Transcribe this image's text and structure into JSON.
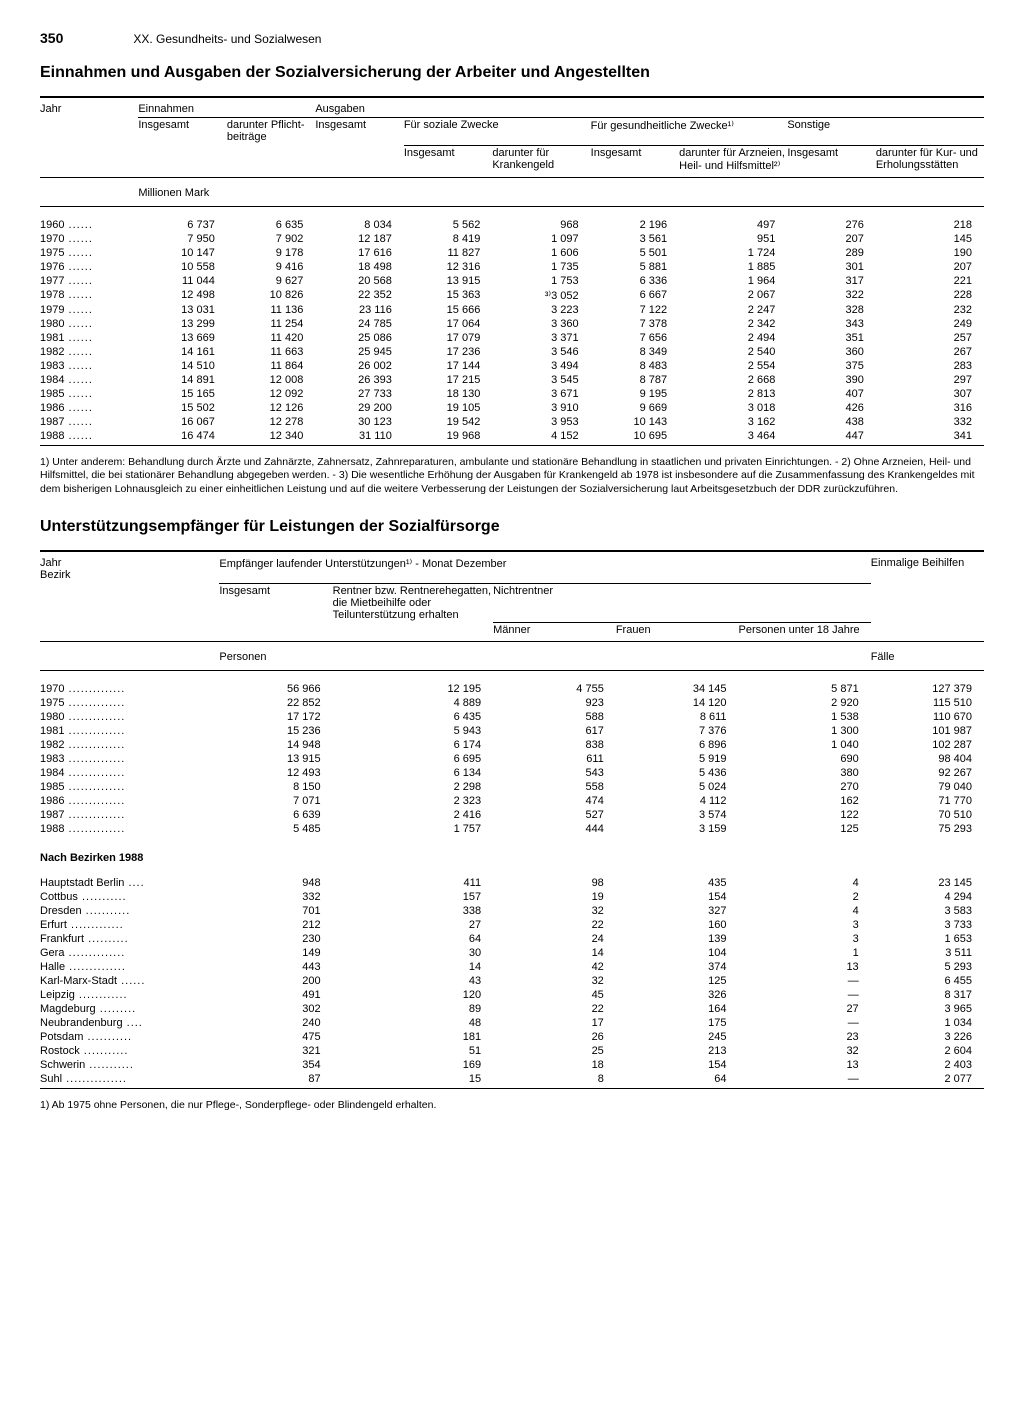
{
  "page_number": "350",
  "chapter_title": "XX. Gesundheits- und Sozialwesen",
  "table1": {
    "title": "Einnahmen und Ausgaben der Sozialversicherung der Arbeiter und Angestellten",
    "col_labels": {
      "jahr": "Jahr",
      "einnahmen": "Einnahmen",
      "ausgaben": "Ausgaben",
      "insgesamt": "Insgesamt",
      "pflicht": "darunter Pflicht­beiträge",
      "soziale": "Für soziale Zwecke",
      "kranken": "darunter für Krankengeld",
      "gesundheit": "Für gesundheitliche Zwecke¹⁾",
      "arznei": "darunter für Arzneien, Heil- und Hilfsmittel²⁾",
      "sonstige": "Sonstige",
      "kur": "darunter für Kur- und Erholungs­stätten"
    },
    "unit": "Millionen Mark",
    "rows": [
      {
        "y": "1960",
        "c": [
          "6 737",
          "6 635",
          "8 034",
          "5 562",
          "968",
          "2 196",
          "497",
          "276",
          "218"
        ]
      },
      {
        "y": "1970",
        "c": [
          "7 950",
          "7 902",
          "12 187",
          "8 419",
          "1 097",
          "3 561",
          "951",
          "207",
          "145"
        ]
      },
      {
        "y": "1975",
        "c": [
          "10 147",
          "9 178",
          "17 616",
          "11 827",
          "1 606",
          "5 501",
          "1 724",
          "289",
          "190"
        ]
      },
      {
        "y": "1976",
        "c": [
          "10 558",
          "9 416",
          "18 498",
          "12 316",
          "1 735",
          "5 881",
          "1 885",
          "301",
          "207"
        ]
      },
      {
        "y": "1977",
        "c": [
          "11 044",
          "9 627",
          "20 568",
          "13 915",
          "1 753",
          "6 336",
          "1 964",
          "317",
          "221"
        ]
      },
      {
        "y": "1978",
        "c": [
          "12 498",
          "10 826",
          "22 352",
          "15 363",
          "³⁾3 052",
          "6 667",
          "2 067",
          "322",
          "228"
        ]
      },
      {
        "y": "1979",
        "c": [
          "13 031",
          "11 136",
          "23 116",
          "15 666",
          "3 223",
          "7 122",
          "2 247",
          "328",
          "232"
        ]
      },
      {
        "y": "1980",
        "c": [
          "13 299",
          "11 254",
          "24 785",
          "17 064",
          "3 360",
          "7 378",
          "2 342",
          "343",
          "249"
        ]
      },
      {
        "y": "1981",
        "c": [
          "13 669",
          "11 420",
          "25 086",
          "17 079",
          "3 371",
          "7 656",
          "2 494",
          "351",
          "257"
        ]
      },
      {
        "y": "1982",
        "c": [
          "14 161",
          "11 663",
          "25 945",
          "17 236",
          "3 546",
          "8 349",
          "2 540",
          "360",
          "267"
        ]
      },
      {
        "y": "1983",
        "c": [
          "14 510",
          "11 864",
          "26 002",
          "17 144",
          "3 494",
          "8 483",
          "2 554",
          "375",
          "283"
        ]
      },
      {
        "y": "1984",
        "c": [
          "14 891",
          "12 008",
          "26 393",
          "17 215",
          "3 545",
          "8 787",
          "2 668",
          "390",
          "297"
        ]
      },
      {
        "y": "1985",
        "c": [
          "15 165",
          "12 092",
          "27 733",
          "18 130",
          "3 671",
          "9 195",
          "2 813",
          "407",
          "307"
        ]
      },
      {
        "y": "1986",
        "c": [
          "15 502",
          "12 126",
          "29 200",
          "19 105",
          "3 910",
          "9 669",
          "3 018",
          "426",
          "316"
        ]
      },
      {
        "y": "1987",
        "c": [
          "16 067",
          "12 278",
          "30 123",
          "19 542",
          "3 953",
          "10 143",
          "3 162",
          "438",
          "332"
        ]
      },
      {
        "y": "1988",
        "c": [
          "16 474",
          "12 340",
          "31 110",
          "19 968",
          "4 152",
          "10 695",
          "3 464",
          "447",
          "341"
        ]
      }
    ],
    "footnote": "1) Unter anderem: Behandlung durch Ärzte und Zahnärzte, Zahnersatz, Zahnreparaturen, ambulante und stationäre Behandlung in staatlichen und privaten Einrichtungen. - 2) Ohne Arzneien, Heil- und Hilfsmittel, die bei stationärer Behandlung abgegeben werden. - 3) Die wesentliche Erhöhung der Ausgaben für Krankengeld ab 1978 ist insbesondere auf die Zusammenfassung des Krankengeldes mit dem bisherigen Lohnausgleich zu einer einheitlichen Leistung und auf die weitere Verbesserung der Leistungen der Sozialversicherung laut Arbeitsgesetzbuch der DDR zurückzuführen."
  },
  "table2": {
    "title": "Unterstützungsempfänger für Leistungen der Sozialfürsorge",
    "col_labels": {
      "jahr_bezirk": "Jahr\nBezirk",
      "empfaenger": "Empfänger laufender Unterstützungen¹⁾ - Monat Dezember",
      "insgesamt": "Insgesamt",
      "rentner": "Rentner bzw. Rentnerehegatten, die Mietbeihilfe oder Teilunterstützung erhalten",
      "nichtrentner": "Nichtrentner",
      "maenner": "Männer",
      "frauen": "Frauen",
      "u18": "Personen unter 18 Jahre",
      "einmalig": "Einmalige Beihilfen"
    },
    "unit_left": "Personen",
    "unit_right": "Fälle",
    "rows_years": [
      {
        "y": "1970",
        "c": [
          "56 966",
          "12 195",
          "4 755",
          "34 145",
          "5 871",
          "127 379"
        ]
      },
      {
        "y": "1975",
        "c": [
          "22 852",
          "4 889",
          "923",
          "14 120",
          "2 920",
          "115 510"
        ]
      },
      {
        "y": "1980",
        "c": [
          "17 172",
          "6 435",
          "588",
          "8 611",
          "1 538",
          "110 670"
        ]
      },
      {
        "y": "1981",
        "c": [
          "15 236",
          "5 943",
          "617",
          "7 376",
          "1 300",
          "101 987"
        ]
      },
      {
        "y": "1982",
        "c": [
          "14 948",
          "6 174",
          "838",
          "6 896",
          "1 040",
          "102 287"
        ]
      },
      {
        "y": "1983",
        "c": [
          "13 915",
          "6 695",
          "611",
          "5 919",
          "690",
          "98 404"
        ]
      },
      {
        "y": "1984",
        "c": [
          "12 493",
          "6 134",
          "543",
          "5 436",
          "380",
          "92 267"
        ]
      },
      {
        "y": "1985",
        "c": [
          "8 150",
          "2 298",
          "558",
          "5 024",
          "270",
          "79 040"
        ]
      },
      {
        "y": "1986",
        "c": [
          "7 071",
          "2 323",
          "474",
          "4 112",
          "162",
          "71 770"
        ]
      },
      {
        "y": "1987",
        "c": [
          "6 639",
          "2 416",
          "527",
          "3 574",
          "122",
          "70 510"
        ]
      },
      {
        "y": "1988",
        "c": [
          "5 485",
          "1 757",
          "444",
          "3 159",
          "125",
          "75 293"
        ]
      }
    ],
    "bezirk_label": "Nach Bezirken 1988",
    "rows_bezirk": [
      {
        "b": "Hauptstadt Berlin",
        "d": "....",
        "c": [
          "948",
          "411",
          "98",
          "435",
          "4",
          "23 145"
        ]
      },
      {
        "b": "Cottbus",
        "d": "...........",
        "c": [
          "332",
          "157",
          "19",
          "154",
          "2",
          "4 294"
        ]
      },
      {
        "b": "Dresden",
        "d": "...........",
        "c": [
          "701",
          "338",
          "32",
          "327",
          "4",
          "3 583"
        ]
      },
      {
        "b": "Erfurt",
        "d": ".............",
        "c": [
          "212",
          "27",
          "22",
          "160",
          "3",
          "3 733"
        ]
      },
      {
        "b": "Frankfurt",
        "d": "..........",
        "c": [
          "230",
          "64",
          "24",
          "139",
          "3",
          "1 653"
        ]
      },
      {
        "b": "Gera",
        "d": "..............",
        "c": [
          "149",
          "30",
          "14",
          "104",
          "1",
          "3 511"
        ]
      },
      {
        "b": "Halle",
        "d": "..............",
        "c": [
          "443",
          "14",
          "42",
          "374",
          "13",
          "5 293"
        ]
      },
      {
        "b": "Karl-Marx-Stadt",
        "d": "......",
        "c": [
          "200",
          "43",
          "32",
          "125",
          "—",
          "6 455"
        ]
      },
      {
        "b": "Leipzig",
        "d": "............",
        "c": [
          "491",
          "120",
          "45",
          "326",
          "—",
          "8 317"
        ]
      },
      {
        "b": "Magdeburg",
        "d": ".........",
        "c": [
          "302",
          "89",
          "22",
          "164",
          "27",
          "3 965"
        ]
      },
      {
        "b": "Neubrandenburg",
        "d": "....",
        "c": [
          "240",
          "48",
          "17",
          "175",
          "—",
          "1 034"
        ]
      },
      {
        "b": "Potsdam",
        "d": "...........",
        "c": [
          "475",
          "181",
          "26",
          "245",
          "23",
          "3 226"
        ]
      },
      {
        "b": "Rostock",
        "d": "...........",
        "c": [
          "321",
          "51",
          "25",
          "213",
          "32",
          "2 604"
        ]
      },
      {
        "b": "Schwerin",
        "d": "...........",
        "c": [
          "354",
          "169",
          "18",
          "154",
          "13",
          "2 403"
        ]
      },
      {
        "b": "Suhl",
        "d": "...............",
        "c": [
          "87",
          "15",
          "8",
          "64",
          "—",
          "2 077"
        ]
      }
    ],
    "footnote": "1) Ab 1975 ohne Personen, die nur Pflege-, Sonderpflege- oder Blindengeld erhalten."
  }
}
